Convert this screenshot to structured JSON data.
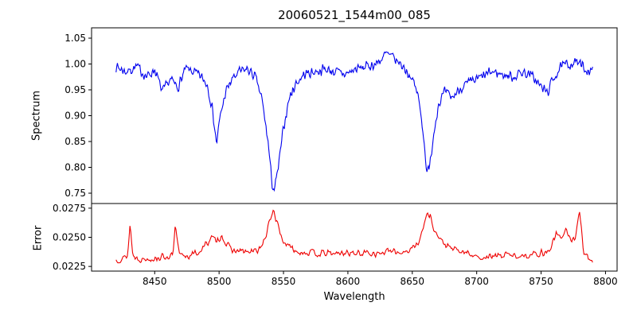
{
  "figure": {
    "title": "20060521_1544m00_085",
    "xlabel": "Wavelength",
    "background": "#ffffff",
    "spine_color": "#000000"
  },
  "chart_data": [
    {
      "id": "spectrum",
      "type": "line",
      "title": "20060521_1544m00_085",
      "xlabel": "",
      "ylabel": "Spectrum",
      "color": "#0000ee",
      "xlim": [
        8401,
        8809
      ],
      "ylim": [
        0.73,
        1.07
      ],
      "grid": false,
      "legend": "none",
      "xticks": [
        8450,
        8500,
        8550,
        8600,
        8650,
        8700,
        8750,
        8800
      ],
      "xtick_labels": [
        "8450",
        "8500",
        "8550",
        "8600",
        "8650",
        "8700",
        "8750",
        "8800"
      ],
      "show_xtick_labels": false,
      "yticks": [
        0.75,
        0.8,
        0.85,
        0.9,
        0.95,
        1.0,
        1.05
      ],
      "ytick_labels": [
        "0.75",
        "0.80",
        "0.85",
        "0.90",
        "0.95",
        "1.00",
        "1.05"
      ],
      "noise_amplitude": 0.012,
      "noise_seed": 7,
      "samples": 700,
      "anchor_points": [
        [
          8420,
          0.995
        ],
        [
          8428,
          0.985
        ],
        [
          8436,
          0.995
        ],
        [
          8444,
          0.975
        ],
        [
          8450,
          0.99
        ],
        [
          8456,
          0.945
        ],
        [
          8462,
          0.97
        ],
        [
          8468,
          0.955
        ],
        [
          8474,
          0.99
        ],
        [
          8480,
          0.985
        ],
        [
          8486,
          0.975
        ],
        [
          8491,
          0.96
        ],
        [
          8495,
          0.91
        ],
        [
          8498,
          0.845
        ],
        [
          8501,
          0.9
        ],
        [
          8505,
          0.945
        ],
        [
          8510,
          0.97
        ],
        [
          8516,
          0.985
        ],
        [
          8522,
          0.99
        ],
        [
          8528,
          0.975
        ],
        [
          8533,
          0.935
        ],
        [
          8538,
          0.85
        ],
        [
          8541,
          0.77
        ],
        [
          8543,
          0.755
        ],
        [
          8546,
          0.8
        ],
        [
          8550,
          0.875
        ],
        [
          8554,
          0.93
        ],
        [
          8559,
          0.96
        ],
        [
          8566,
          0.98
        ],
        [
          8574,
          0.985
        ],
        [
          8582,
          0.99
        ],
        [
          8590,
          0.985
        ],
        [
          8598,
          0.98
        ],
        [
          8606,
          0.99
        ],
        [
          8614,
          0.995
        ],
        [
          8622,
          1.0
        ],
        [
          8630,
          1.02
        ],
        [
          8636,
          1.01
        ],
        [
          8643,
          0.995
        ],
        [
          8649,
          0.975
        ],
        [
          8654,
          0.945
        ],
        [
          8658,
          0.88
        ],
        [
          8661,
          0.8
        ],
        [
          8663,
          0.79
        ],
        [
          8666,
          0.855
        ],
        [
          8670,
          0.92
        ],
        [
          8675,
          0.945
        ],
        [
          8681,
          0.935
        ],
        [
          8688,
          0.955
        ],
        [
          8696,
          0.965
        ],
        [
          8704,
          0.975
        ],
        [
          8712,
          0.985
        ],
        [
          8720,
          0.98
        ],
        [
          8728,
          0.975
        ],
        [
          8736,
          0.985
        ],
        [
          8744,
          0.975
        ],
        [
          8750,
          0.955
        ],
        [
          8755,
          0.945
        ],
        [
          8760,
          0.975
        ],
        [
          8766,
          0.995
        ],
        [
          8772,
          1.0
        ],
        [
          8778,
          1.005
        ],
        [
          8784,
          0.99
        ],
        [
          8790,
          0.985
        ]
      ]
    },
    {
      "id": "error",
      "type": "line",
      "title": "",
      "xlabel": "Wavelength",
      "ylabel": "Error",
      "color": "#ee0000",
      "xlim": [
        8401,
        8809
      ],
      "ylim": [
        0.0221,
        0.0279
      ],
      "grid": false,
      "legend": "none",
      "xticks": [
        8450,
        8500,
        8550,
        8600,
        8650,
        8700,
        8750,
        8800
      ],
      "xtick_labels": [
        "8450",
        "8500",
        "8550",
        "8600",
        "8650",
        "8700",
        "8750",
        "8800"
      ],
      "show_xtick_labels": true,
      "yticks": [
        0.0225,
        0.025,
        0.0275
      ],
      "ytick_labels": [
        "0.0225",
        "0.0250",
        "0.0275"
      ],
      "noise_amplitude": 0.00035,
      "noise_seed": 13,
      "samples": 550,
      "anchor_points": [
        [
          8420,
          0.0231
        ],
        [
          8426,
          0.0232
        ],
        [
          8429,
          0.0235
        ],
        [
          8431,
          0.0262
        ],
        [
          8433,
          0.0234
        ],
        [
          8440,
          0.0231
        ],
        [
          8448,
          0.0232
        ],
        [
          8456,
          0.0233
        ],
        [
          8464,
          0.0234
        ],
        [
          8466,
          0.0259
        ],
        [
          8469,
          0.0235
        ],
        [
          8476,
          0.0234
        ],
        [
          8484,
          0.0237
        ],
        [
          8490,
          0.0244
        ],
        [
          8494,
          0.025
        ],
        [
          8498,
          0.0246
        ],
        [
          8502,
          0.0252
        ],
        [
          8506,
          0.0243
        ],
        [
          8512,
          0.0238
        ],
        [
          8518,
          0.0238
        ],
        [
          8524,
          0.0237
        ],
        [
          8530,
          0.0239
        ],
        [
          8535,
          0.0246
        ],
        [
          8539,
          0.0262
        ],
        [
          8542,
          0.0274
        ],
        [
          8545,
          0.0263
        ],
        [
          8549,
          0.0248
        ],
        [
          8554,
          0.0242
        ],
        [
          8560,
          0.0238
        ],
        [
          8568,
          0.0237
        ],
        [
          8576,
          0.0236
        ],
        [
          8584,
          0.0236
        ],
        [
          8592,
          0.0236
        ],
        [
          8600,
          0.0237
        ],
        [
          8608,
          0.0236
        ],
        [
          8616,
          0.0237
        ],
        [
          8624,
          0.0236
        ],
        [
          8632,
          0.0238
        ],
        [
          8640,
          0.0237
        ],
        [
          8648,
          0.0239
        ],
        [
          8653,
          0.0243
        ],
        [
          8658,
          0.0255
        ],
        [
          8661,
          0.027
        ],
        [
          8664,
          0.0268
        ],
        [
          8668,
          0.0254
        ],
        [
          8673,
          0.0246
        ],
        [
          8679,
          0.0241
        ],
        [
          8686,
          0.0238
        ],
        [
          8694,
          0.0236
        ],
        [
          8701,
          0.0233
        ],
        [
          8708,
          0.0233
        ],
        [
          8716,
          0.0234
        ],
        [
          8724,
          0.0235
        ],
        [
          8732,
          0.0234
        ],
        [
          8740,
          0.0235
        ],
        [
          8748,
          0.0236
        ],
        [
          8756,
          0.0238
        ],
        [
          8762,
          0.0253
        ],
        [
          8765,
          0.0249
        ],
        [
          8769,
          0.0257
        ],
        [
          8773,
          0.0247
        ],
        [
          8777,
          0.025
        ],
        [
          8780,
          0.0273
        ],
        [
          8783,
          0.0238
        ],
        [
          8787,
          0.0232
        ],
        [
          8790,
          0.023
        ]
      ]
    }
  ]
}
